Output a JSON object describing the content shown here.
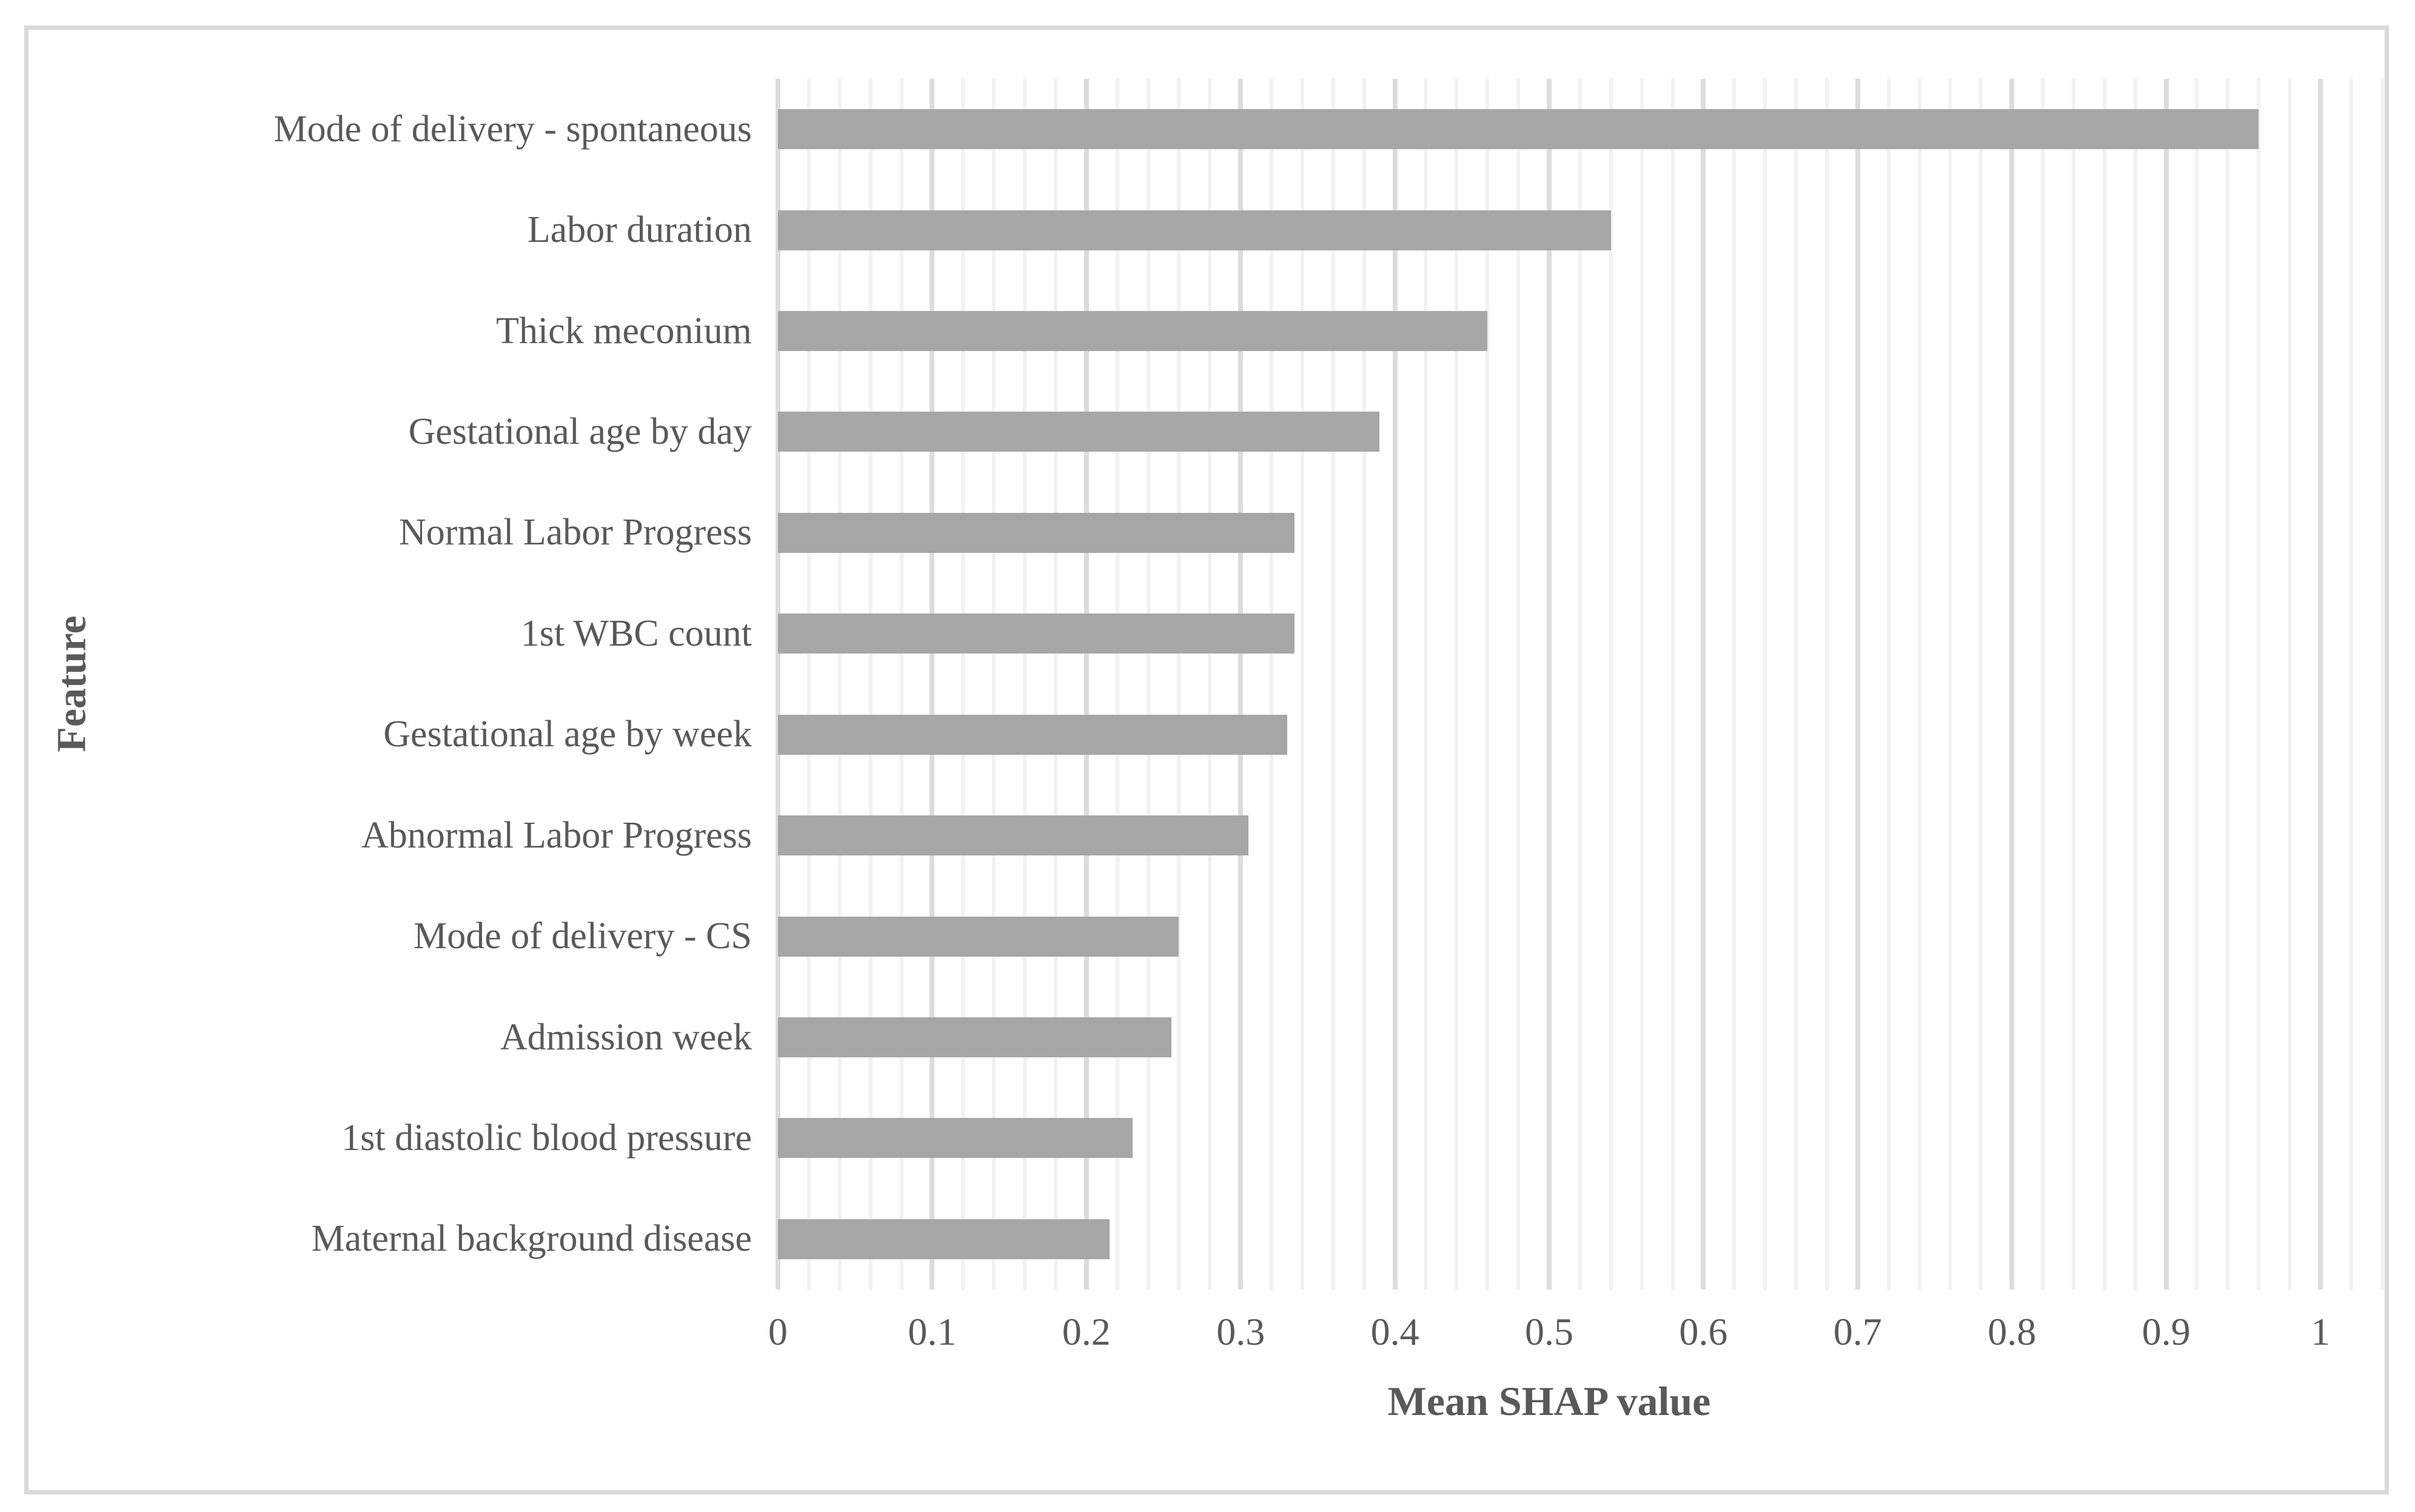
{
  "figure": {
    "x_axis_title": "Mean SHAP value",
    "y_axis_title": "Feature",
    "colors": {
      "bar": "#a6a6a6",
      "grid_minor": "#f2f2f2",
      "grid_major": "#dcdcdc",
      "frame": "#d9d9d9",
      "text": "#595959"
    }
  },
  "chart_data": {
    "type": "bar",
    "orientation": "horizontal",
    "title": "",
    "xlabel": "Mean SHAP value",
    "ylabel": "Feature",
    "xlim": [
      0,
      1
    ],
    "x_major_step": 0.1,
    "x_minor_step": 0.02,
    "grid": "vertical",
    "legend": "none",
    "x_tick_labels": [
      "0",
      "0.1",
      "0.2",
      "0.3",
      "0.4",
      "0.5",
      "0.6",
      "0.7",
      "0.8",
      "0.9",
      "1"
    ],
    "categories": [
      "Mode of delivery - spontaneous",
      "Labor duration",
      "Thick meconium",
      "Gestational age by day",
      "Normal Labor Progress",
      "1st WBC count",
      "Gestational age by week",
      "Abnormal Labor Progress",
      "Mode of delivery - CS",
      "Admission week",
      "1st diastolic blood pressure",
      "Maternal background disease"
    ],
    "values": [
      0.96,
      0.54,
      0.46,
      0.39,
      0.335,
      0.335,
      0.33,
      0.305,
      0.26,
      0.255,
      0.23,
      0.215
    ]
  }
}
